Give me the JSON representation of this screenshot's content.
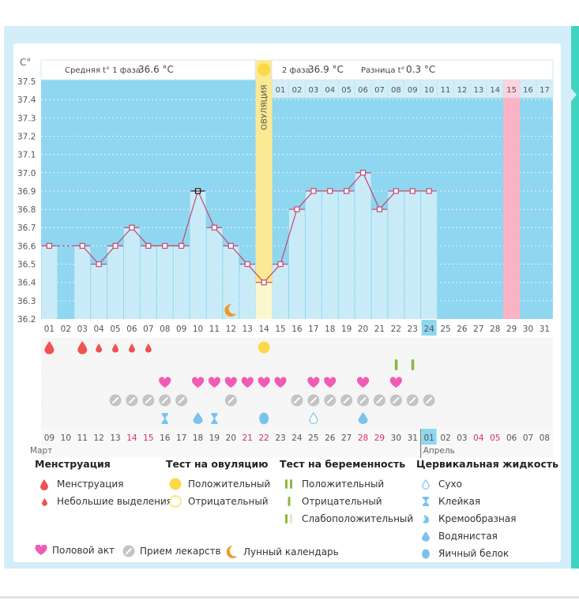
{
  "header": {
    "phase1_label": "Средняя t° 1 фаза",
    "phase1_value": "36.6 °C",
    "phase2_label": "2 фаза",
    "phase2_value": "36.9 °C",
    "diff_label": "Разница t°",
    "diff_value": "0.3 °C",
    "ovulation_label": "ОВУЛЯЦИЯ",
    "unit_label": "С°"
  },
  "colors": {
    "plot_bg": "#8fd6f0",
    "bar_fill": "#c9ebf8",
    "ovulation_band": "#fbe993",
    "ovulation_band_light": "#fdf7d0",
    "expected_period_band": "#f9b3c5",
    "line": "#c4476f",
    "menstruation": "#f05252",
    "heart": "#f25bb4",
    "pill": "#c4c4c4",
    "ovulation_positive": "#fdd848",
    "pregnancy_test": "#8db83a",
    "cervical": "#7cc3ec",
    "moon": "#ee9a2c",
    "today_highlight": "#8fd6f0",
    "weekend_text": "#d9315e"
  },
  "chart_data": {
    "type": "line",
    "title": "",
    "xlabel": "",
    "ylabel": "С°",
    "ylim": [
      36.2,
      37.5
    ],
    "yticks": [
      "37.5",
      "37.4",
      "37.3",
      "37.2",
      "37.1",
      "37.0",
      "36.9",
      "36.8",
      "36.7",
      "36.6",
      "36.5",
      "36.4",
      "36.3",
      "36.2"
    ],
    "grid": true,
    "cycle_days": [
      "01",
      "02",
      "03",
      "04",
      "05",
      "06",
      "07",
      "08",
      "09",
      "10",
      "11",
      "12",
      "13",
      "14",
      "15",
      "16",
      "17",
      "18",
      "19",
      "20",
      "21",
      "22",
      "23",
      "24",
      "25",
      "26",
      "27",
      "28",
      "29",
      "30",
      "31"
    ],
    "phase2_days": [
      "01",
      "02",
      "03",
      "04",
      "05",
      "06",
      "07",
      "08",
      "09",
      "10",
      "11",
      "12",
      "13",
      "14",
      "15",
      "16",
      "17"
    ],
    "temperatures": [
      36.6,
      null,
      36.6,
      36.5,
      36.6,
      36.7,
      36.6,
      36.6,
      36.6,
      36.9,
      36.7,
      36.6,
      36.5,
      36.4,
      36.5,
      36.8,
      36.9,
      36.9,
      36.9,
      37.0,
      36.8,
      36.9,
      36.9,
      36.9,
      null,
      null,
      null,
      null,
      null,
      null,
      null
    ],
    "highlighted_point_day": 10,
    "ovulation_day": 14,
    "expected_period_day": 29,
    "today_cycle_day": 24,
    "moon_day": 12,
    "calendar_dates": [
      "09",
      "10",
      "11",
      "12",
      "13",
      "14",
      "15",
      "16",
      "17",
      "18",
      "19",
      "20",
      "21",
      "22",
      "23",
      "24",
      "25",
      "26",
      "27",
      "28",
      "29",
      "30",
      "31",
      "01",
      "02",
      "03",
      "04",
      "05",
      "06",
      "07",
      "08"
    ],
    "weekend_dates_idx": [
      5,
      6,
      12,
      13,
      19,
      20,
      26,
      27
    ],
    "today_date_idx": 23,
    "months": [
      {
        "label": "Март",
        "start_idx": 0
      },
      {
        "label": "Апрель",
        "start_idx": 23
      }
    ],
    "markers": {
      "menstruation_heavy": [
        1,
        3
      ],
      "menstruation_light": [
        4,
        5,
        6,
        7
      ],
      "ovulation_test_positive": [
        14
      ],
      "pregnancy_test_negative": [
        22,
        23
      ],
      "intercourse": [
        8,
        10,
        11,
        12,
        13,
        14,
        15,
        17,
        18,
        20,
        22
      ],
      "medication": [
        5,
        6,
        7,
        8,
        9,
        12,
        16,
        17,
        18,
        19,
        20,
        21,
        22,
        23,
        24
      ],
      "cervical_sticky": [
        8,
        11
      ],
      "cervical_watery": [
        10,
        20
      ],
      "cervical_eggwhite": [
        14
      ],
      "cervical_dry": [
        17
      ]
    }
  },
  "legend": {
    "menstruation": {
      "title": "Менструация",
      "items": [
        "Менструация",
        "Небольшие выделения"
      ]
    },
    "ovulation_test": {
      "title": "Тест на овуляцию",
      "items": [
        "Положительный",
        "Отрицательный"
      ]
    },
    "pregnancy_test": {
      "title": "Тест на беременность",
      "items": [
        "Положительный",
        "Отрицательный",
        "Слабоположительный"
      ]
    },
    "cervical": {
      "title": "Цервикальная жидкость",
      "items": [
        "Сухо",
        "Клейкая",
        "Кремообразная",
        "Водянистая",
        "Яичный белок"
      ]
    },
    "other": [
      "Половой акт",
      "Прием лекарств",
      "Лунный календарь"
    ]
  }
}
